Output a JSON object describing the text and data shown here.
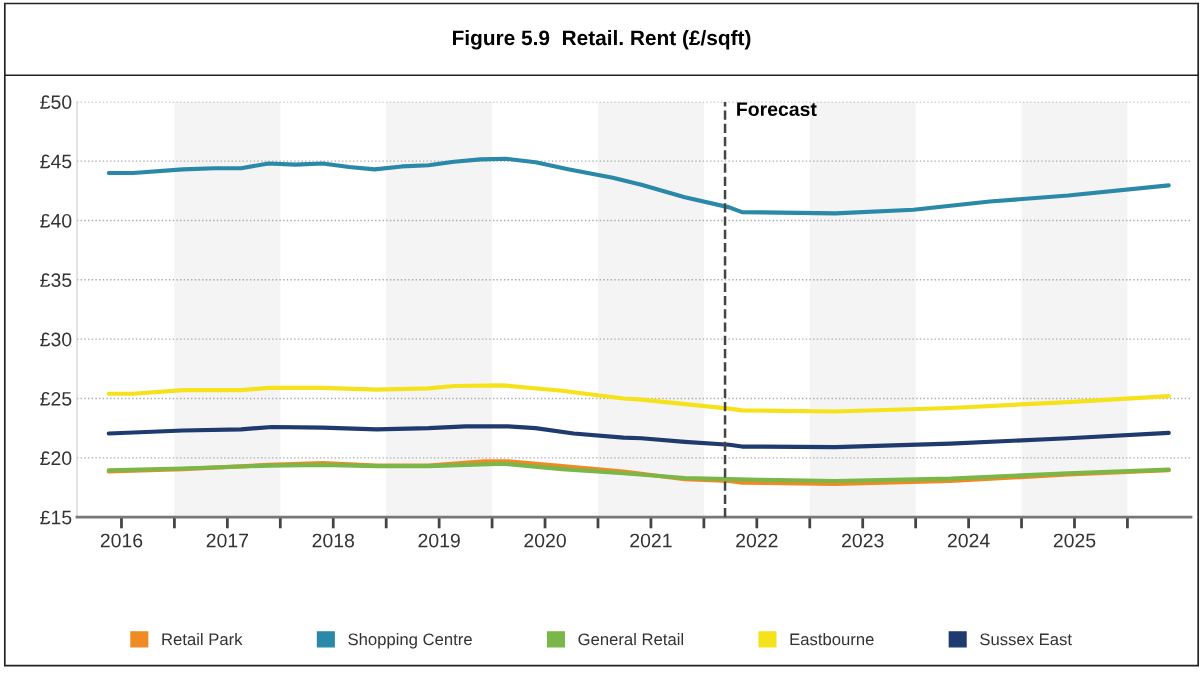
{
  "chart_data": {
    "type": "line",
    "title": "Figure 5.9  Retail. Rent (£/sqft)",
    "xlim": [
      2016.08,
      2026.6
    ],
    "ylim": [
      15,
      50
    ],
    "xticks": [
      {
        "value": 2016.5,
        "label": "2016"
      },
      {
        "value": 2017,
        "label": null
      },
      {
        "value": 2017.5,
        "label": "2017"
      },
      {
        "value": 2018,
        "label": null
      },
      {
        "value": 2018.5,
        "label": "2018"
      },
      {
        "value": 2019,
        "label": null
      },
      {
        "value": 2019.5,
        "label": "2019"
      },
      {
        "value": 2020,
        "label": null
      },
      {
        "value": 2020.5,
        "label": "2020"
      },
      {
        "value": 2021,
        "label": null
      },
      {
        "value": 2021.5,
        "label": "2021"
      },
      {
        "value": 2022,
        "label": null
      },
      {
        "value": 2022.5,
        "label": "2022"
      },
      {
        "value": 2023,
        "label": null
      },
      {
        "value": 2023.5,
        "label": "2023"
      },
      {
        "value": 2024,
        "label": null
      },
      {
        "value": 2024.5,
        "label": "2024"
      },
      {
        "value": 2025,
        "label": null
      },
      {
        "value": 2025.5,
        "label": "2025"
      },
      {
        "value": 2026,
        "label": null
      }
    ],
    "yticks": [
      {
        "value": 15,
        "label": "£15"
      },
      {
        "value": 20,
        "label": "£20"
      },
      {
        "value": 25,
        "label": "£25"
      },
      {
        "value": 30,
        "label": "£30"
      },
      {
        "value": 35,
        "label": "£35"
      },
      {
        "value": 40,
        "label": "£40"
      },
      {
        "value": 45,
        "label": "£45"
      },
      {
        "value": 50,
        "label": "£50"
      }
    ],
    "grid": "y",
    "legend": "bottom",
    "marker": "none",
    "line_style": "solid",
    "ref_lines": [
      {
        "axis": "x",
        "value": 2022.2,
        "label": "Forecast",
        "color": "#444444",
        "line_style": "dashed"
      }
    ],
    "bands": [
      {
        "axis": "x",
        "from": 2017,
        "to": 2018,
        "label": null,
        "color": "#f4f4f4"
      },
      {
        "axis": "x",
        "from": 2019,
        "to": 2020,
        "label": null,
        "color": "#f4f4f4"
      },
      {
        "axis": "x",
        "from": 2021,
        "to": 2022,
        "label": null,
        "color": "#f4f4f4"
      },
      {
        "axis": "x",
        "from": 2023,
        "to": 2024,
        "label": null,
        "color": "#f4f4f4"
      },
      {
        "axis": "x",
        "from": 2025,
        "to": 2026,
        "label": null,
        "color": "#f4f4f4"
      }
    ],
    "series": [
      {
        "name": "Retail Park",
        "color": "#f08a24",
        "x": [
          2016.38,
          2017.08,
          2017.89,
          2018.4,
          2018.91,
          2019.4,
          2019.93,
          2020.15,
          2020.66,
          2021.24,
          2021.82,
          2022.24,
          2022.36,
          2023.24,
          2024.33,
          2025.44,
          2026.39
        ],
        "values": [
          18.85,
          19.05,
          19.4,
          19.55,
          19.35,
          19.35,
          19.7,
          19.7,
          19.3,
          18.85,
          18.2,
          18.05,
          17.9,
          17.8,
          18.05,
          18.6,
          18.95
        ]
      },
      {
        "name": "Shopping Centre",
        "color": "#2a88a8",
        "x": [
          2016.38,
          2016.61,
          2017.08,
          2017.38,
          2017.63,
          2017.89,
          2018.14,
          2018.4,
          2018.65,
          2018.89,
          2019.15,
          2019.4,
          2019.64,
          2019.89,
          2020.13,
          2020.41,
          2020.73,
          2021.14,
          2021.41,
          2021.82,
          2022.24,
          2022.36,
          2023.24,
          2023.98,
          2024.7,
          2025.44,
          2026.39
        ],
        "values": [
          44.0,
          44.0,
          44.3,
          44.4,
          44.4,
          44.8,
          44.7,
          44.8,
          44.5,
          44.3,
          44.55,
          44.65,
          44.95,
          45.15,
          45.2,
          44.9,
          44.3,
          43.6,
          43.0,
          41.95,
          41.1,
          40.7,
          40.6,
          40.9,
          41.6,
          42.1,
          42.95
        ]
      },
      {
        "name": "General Retail",
        "color": "#7ab648",
        "x": [
          2016.38,
          2017.08,
          2017.89,
          2018.4,
          2018.91,
          2019.4,
          2020.11,
          2020.66,
          2021.24,
          2021.82,
          2022.24,
          2022.51,
          2023.24,
          2024.33,
          2025.44,
          2026.39
        ],
        "values": [
          18.95,
          19.1,
          19.35,
          19.4,
          19.3,
          19.3,
          19.5,
          19.05,
          18.7,
          18.3,
          18.2,
          18.15,
          18.05,
          18.25,
          18.7,
          19.0
        ]
      },
      {
        "name": "Eastbourne",
        "color": "#f5e21b",
        "x": [
          2016.38,
          2016.61,
          2017.08,
          2017.63,
          2017.89,
          2018.4,
          2018.91,
          2019.4,
          2019.64,
          2020.11,
          2020.66,
          2021.24,
          2021.41,
          2022.24,
          2022.36,
          2023.24,
          2024.33,
          2025.44,
          2026.39
        ],
        "values": [
          25.4,
          25.4,
          25.7,
          25.7,
          25.9,
          25.9,
          25.75,
          25.85,
          26.05,
          26.1,
          25.65,
          25.0,
          24.9,
          24.15,
          24.0,
          23.9,
          24.2,
          24.7,
          25.2
        ]
      },
      {
        "name": "Sussex East",
        "color": "#1f3a6e",
        "x": [
          2016.38,
          2017.08,
          2017.63,
          2017.92,
          2018.4,
          2018.91,
          2019.4,
          2019.75,
          2020.15,
          2020.41,
          2020.77,
          2021.24,
          2021.41,
          2021.82,
          2022.24,
          2022.36,
          2023.24,
          2024.33,
          2025.44,
          2026.39
        ],
        "values": [
          22.05,
          22.3,
          22.4,
          22.6,
          22.55,
          22.4,
          22.5,
          22.65,
          22.65,
          22.5,
          22.05,
          21.7,
          21.65,
          21.35,
          21.1,
          20.95,
          20.9,
          21.2,
          21.65,
          22.1
        ]
      }
    ]
  }
}
